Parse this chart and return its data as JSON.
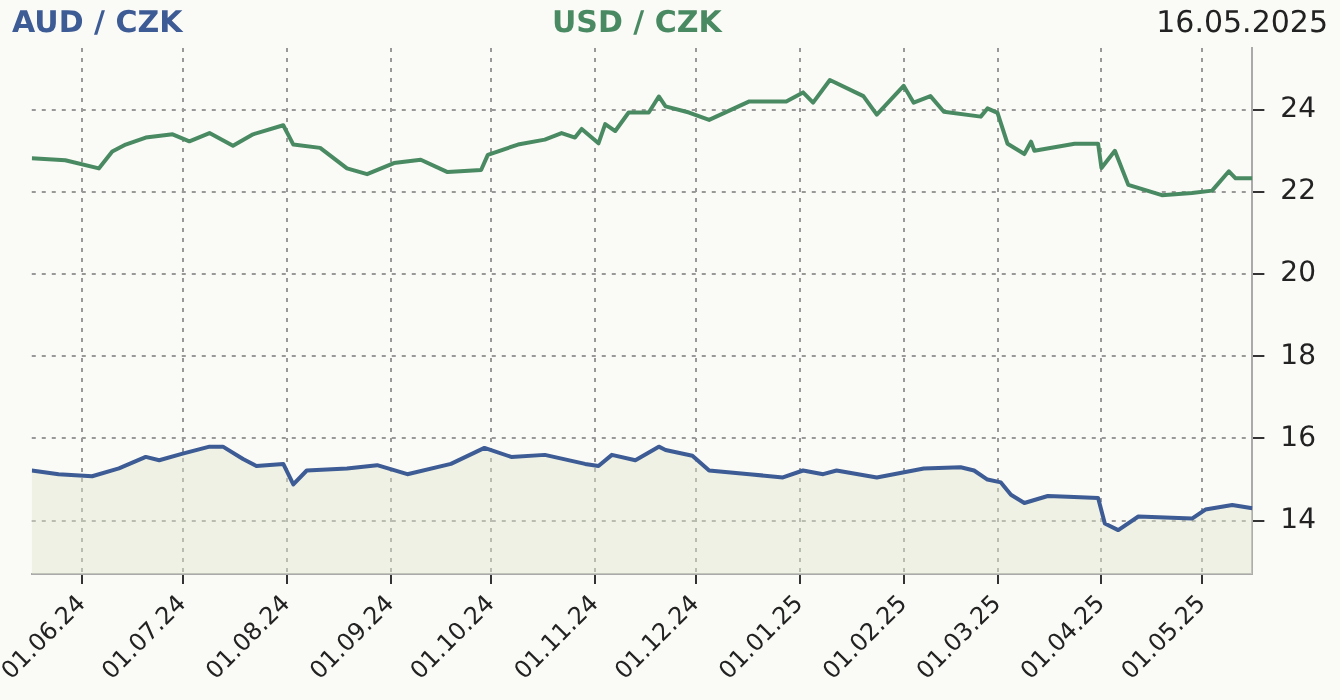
{
  "chart_data": {
    "type": "line",
    "annotations": [
      "16.05.2025"
    ],
    "legend": "top",
    "grid": true,
    "marker": "none",
    "xlim": [
      "2024-05-17",
      "2025-05-16"
    ],
    "xticks": [
      {
        "value": "2024-06-01",
        "label": "01.06.24"
      },
      {
        "value": "2024-07-01",
        "label": "01.07.24"
      },
      {
        "value": "2024-08-01",
        "label": "01.08.24"
      },
      {
        "value": "2024-09-01",
        "label": "01.09.24"
      },
      {
        "value": "2024-10-01",
        "label": "01.10.24"
      },
      {
        "value": "2024-11-01",
        "label": "01.11.24"
      },
      {
        "value": "2024-12-01",
        "label": "01.12.24"
      },
      {
        "value": "2025-01-01",
        "label": "01.01.25"
      },
      {
        "value": "2025-02-01",
        "label": "01.02.25"
      },
      {
        "value": "2025-03-01",
        "label": "01.03.25"
      },
      {
        "value": "2025-04-01",
        "label": "01.04.25"
      },
      {
        "value": "2025-05-01",
        "label": "01.05.25"
      }
    ],
    "ylim": [
      12.7,
      25.5
    ],
    "yticks": [
      14,
      16,
      18,
      20,
      22,
      24
    ],
    "series": [
      {
        "name": "AUD / CZK",
        "type": "area",
        "color": "#3d5b94",
        "x": [
          "2024-05-17",
          "2024-05-25",
          "2024-06-04",
          "2024-06-12",
          "2024-06-20",
          "2024-06-24",
          "2024-07-01",
          "2024-07-09",
          "2024-07-13",
          "2024-07-19",
          "2024-07-23",
          "2024-07-31",
          "2024-08-03",
          "2024-08-07",
          "2024-08-19",
          "2024-08-28",
          "2024-09-06",
          "2024-09-19",
          "2024-09-29",
          "2024-10-07",
          "2024-10-17",
          "2024-10-29",
          "2024-11-02",
          "2024-11-06",
          "2024-11-13",
          "2024-11-20",
          "2024-11-22",
          "2024-11-30",
          "2024-12-05",
          "2024-12-17",
          "2024-12-27",
          "2025-01-02",
          "2025-01-08",
          "2025-01-12",
          "2025-01-24",
          "2025-02-07",
          "2025-02-18",
          "2025-02-22",
          "2025-02-26",
          "2025-03-02",
          "2025-03-05",
          "2025-03-09",
          "2025-03-16",
          "2025-03-22",
          "2025-03-31",
          "2025-04-02",
          "2025-04-06",
          "2025-04-12",
          "2025-04-28",
          "2025-05-02",
          "2025-05-10",
          "2025-05-16"
        ],
        "values": [
          15.22,
          15.13,
          15.08,
          15.27,
          15.55,
          15.47,
          15.63,
          15.8,
          15.8,
          15.5,
          15.33,
          15.38,
          14.88,
          15.22,
          15.27,
          15.35,
          15.13,
          15.38,
          15.77,
          15.55,
          15.6,
          15.38,
          15.33,
          15.6,
          15.47,
          15.8,
          15.72,
          15.58,
          15.22,
          15.13,
          15.05,
          15.22,
          15.13,
          15.22,
          15.05,
          15.27,
          15.3,
          15.22,
          15.0,
          14.93,
          14.63,
          14.43,
          14.6,
          14.58,
          14.55,
          13.93,
          13.77,
          14.1,
          14.05,
          14.27,
          14.38,
          14.3
        ]
      },
      {
        "name": "USD / CZK",
        "type": "line",
        "color": "#4a8a62",
        "x": [
          "2024-05-17",
          "2024-05-27",
          "2024-06-06",
          "2024-06-10",
          "2024-06-14",
          "2024-06-20",
          "2024-06-28",
          "2024-07-03",
          "2024-07-09",
          "2024-07-16",
          "2024-07-22",
          "2024-07-31",
          "2024-08-03",
          "2024-08-11",
          "2024-08-19",
          "2024-08-25",
          "2024-09-02",
          "2024-09-10",
          "2024-09-18",
          "2024-09-28",
          "2024-09-30",
          "2024-10-09",
          "2024-10-17",
          "2024-10-22",
          "2024-10-26",
          "2024-10-28",
          "2024-11-02",
          "2024-11-04",
          "2024-11-07",
          "2024-11-11",
          "2024-11-17",
          "2024-11-20",
          "2024-11-22",
          "2024-11-29",
          "2024-12-05",
          "2024-12-17",
          "2024-12-28",
          "2025-01-02",
          "2025-01-05",
          "2025-01-10",
          "2025-01-20",
          "2025-01-24",
          "2025-02-01",
          "2025-02-04",
          "2025-02-09",
          "2025-02-13",
          "2025-02-24",
          "2025-02-26",
          "2025-03-01",
          "2025-03-04",
          "2025-03-09",
          "2025-03-11",
          "2025-03-12",
          "2025-03-24",
          "2025-03-31",
          "2025-04-01",
          "2025-04-05",
          "2025-04-09",
          "2025-04-19",
          "2025-04-28",
          "2025-05-04",
          "2025-05-09",
          "2025-05-11",
          "2025-05-16"
        ],
        "values": [
          22.82,
          22.77,
          22.57,
          22.98,
          23.15,
          23.32,
          23.4,
          23.23,
          23.43,
          23.12,
          23.4,
          23.62,
          23.15,
          23.07,
          22.57,
          22.43,
          22.7,
          22.78,
          22.48,
          22.53,
          22.9,
          23.15,
          23.27,
          23.43,
          23.32,
          23.53,
          23.18,
          23.65,
          23.48,
          23.93,
          23.93,
          24.32,
          24.08,
          23.93,
          23.75,
          24.2,
          24.2,
          24.42,
          24.17,
          24.72,
          24.33,
          23.88,
          24.58,
          24.17,
          24.33,
          23.95,
          23.83,
          24.03,
          23.92,
          23.17,
          22.92,
          23.22,
          23.0,
          23.17,
          23.17,
          22.58,
          23.0,
          22.17,
          21.92,
          21.97,
          22.03,
          22.5,
          22.33,
          22.33
        ]
      }
    ]
  }
}
